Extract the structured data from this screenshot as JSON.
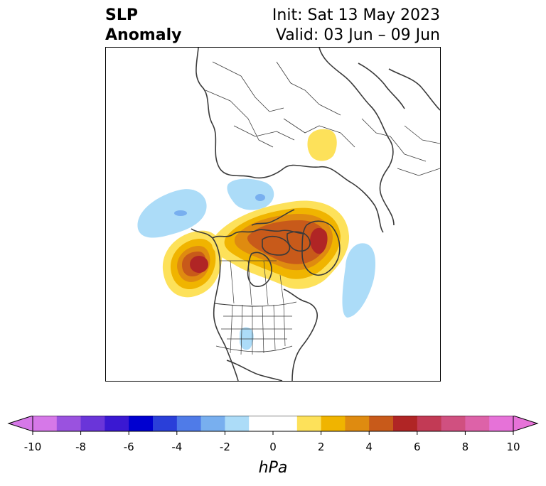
{
  "title": {
    "left_line1": "SLP",
    "left_line2": "Anomaly",
    "init": "Init: Sat 13 May 2023",
    "valid": "Valid: 03 Jun – 09 Jun"
  },
  "colorbar": {
    "unit": "hPa",
    "ticks": [
      "-10",
      "-8",
      "-6",
      "-4",
      "-2",
      "0",
      "2",
      "4",
      "6",
      "8",
      "10"
    ],
    "colors": [
      "#d678e8",
      "#9a52df",
      "#6a35d9",
      "#3a18d2",
      "#0000d0",
      "#2a3fd9",
      "#4f7be8",
      "#78afef",
      "#acdcf8",
      "#ffffff",
      "#ffffff",
      "#fde15a",
      "#f0b400",
      "#df8b10",
      "#c85a1a",
      "#b02525",
      "#c23a55",
      "#d05080",
      "#dd62a8",
      "#e672d8"
    ]
  },
  "map": {
    "projection": "north-polar-stereographic",
    "field_colors": {
      "pos1": "#fde15a",
      "pos2": "#f0b400",
      "pos3": "#df8b10",
      "pos4": "#c85a1a",
      "pos5": "#b02525",
      "neg1": "#acdcf8",
      "neg2": "#78afef"
    }
  }
}
